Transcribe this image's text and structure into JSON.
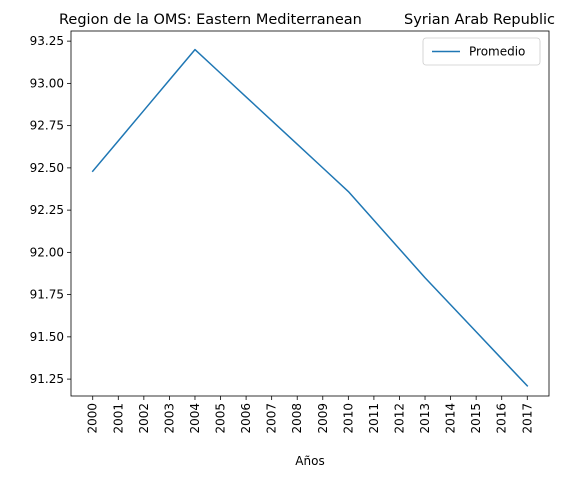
{
  "chart_data": {
    "type": "line",
    "title_left": "Region de la OMS: Eastern Mediterranean",
    "title_right": "Syrian Arab Republic",
    "xlabel": "Años",
    "ylabel": "",
    "x": [
      2000,
      2001,
      2002,
      2003,
      2004,
      2005,
      2006,
      2007,
      2008,
      2009,
      2010,
      2011,
      2012,
      2013,
      2014,
      2015,
      2016,
      2017
    ],
    "x_tick_labels": [
      "2000",
      "2001",
      "2002",
      "2003",
      "2004",
      "2005",
      "2006",
      "2007",
      "2008",
      "2009",
      "2010",
      "2011",
      "2012",
      "2013",
      "2014",
      "2015",
      "2016",
      "2017"
    ],
    "y_ticks": [
      91.25,
      91.5,
      91.75,
      92.0,
      92.25,
      92.5,
      92.75,
      93.0,
      93.25
    ],
    "y_tick_labels": [
      "91.25",
      "91.50",
      "91.75",
      "92.00",
      "92.25",
      "92.50",
      "92.75",
      "93.00",
      "93.25"
    ],
    "ylim": [
      91.15,
      93.31
    ],
    "xlim": [
      1999.15,
      2017.85
    ],
    "series": [
      {
        "name": "Promedio",
        "color": "#1f77b4",
        "values": [
          92.48,
          92.66,
          92.84,
          93.02,
          93.2,
          93.06,
          92.92,
          92.78,
          92.64,
          92.5,
          92.36,
          92.19,
          92.02,
          91.85,
          91.69,
          91.53,
          91.37,
          91.21
        ]
      }
    ],
    "legend_position": "top-right",
    "grid": false
  }
}
